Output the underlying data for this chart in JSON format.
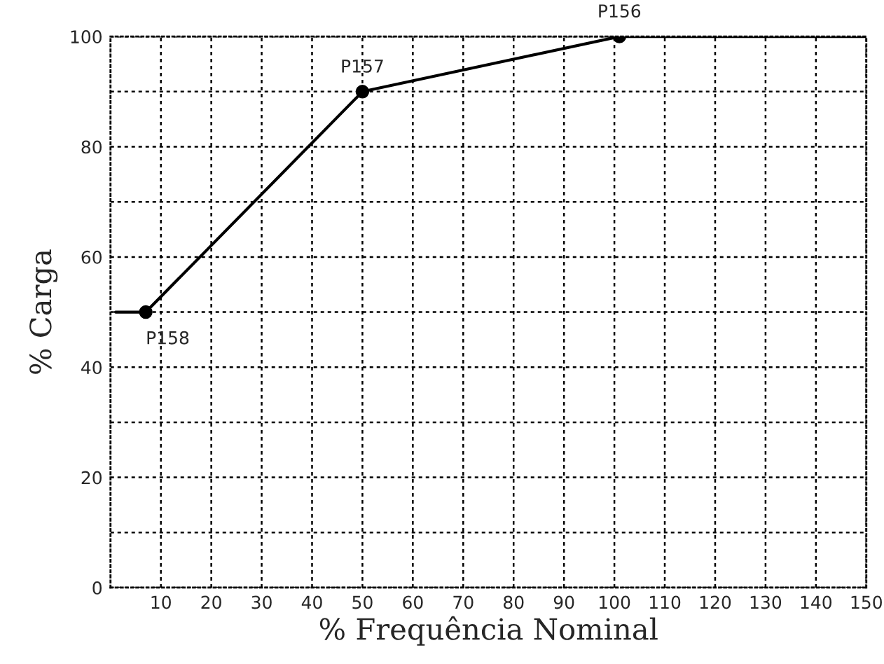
{
  "chart_data": {
    "type": "line",
    "xlabel": "% Frequência Nominal",
    "ylabel": "% Carga",
    "series": [
      {
        "color": "#000000",
        "x": [
          1,
          7,
          50,
          101,
          150
        ],
        "values": [
          50,
          50,
          90,
          100,
          100
        ],
        "marker": "none"
      },
      {
        "type": "scatter",
        "color": "#000000",
        "x": [
          7,
          50,
          101
        ],
        "values": [
          50,
          90,
          100
        ],
        "marker": "circle"
      }
    ],
    "annotations": [
      {
        "text": "P158",
        "x": 7,
        "y": 50
      },
      {
        "text": "P157",
        "x": 50,
        "y": 90
      },
      {
        "text": "P156",
        "x": 101,
        "y": 100
      }
    ],
    "xlim": [
      0,
      150
    ],
    "xticks": [
      10,
      20,
      30,
      40,
      50,
      60,
      70,
      80,
      90,
      100,
      110,
      120,
      130,
      140,
      150
    ],
    "ylim": [
      0,
      100
    ],
    "yticks": [
      0,
      {
        "value": 10,
        "label": null
      },
      20,
      {
        "value": 30,
        "label": null
      },
      40,
      {
        "value": 50,
        "label": null
      },
      60,
      {
        "value": 70,
        "label": null
      },
      80,
      {
        "value": 90,
        "label": null
      },
      100
    ],
    "grid": true,
    "legend": false,
    "line_style": "solid"
  }
}
